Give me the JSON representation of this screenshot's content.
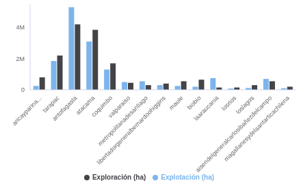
{
  "chart_data": {
    "type": "bar",
    "categories": [
      "aricayparina...",
      "tarapac",
      "antofagasta",
      "atacama",
      "coquimbo",
      "valparaiso",
      "metropolitanadesantiago",
      "libertadorgeneralbernardoohiggins",
      "maule",
      "biobio",
      "laaraucania",
      "losrios",
      "loslagos",
      "aisendelgeneralcarlosibañezdelcampo",
      "magallanesydelaantarticachilena"
    ],
    "series": [
      {
        "name": "Explotación (ha)",
        "color": "#7cb5ec",
        "values": [
          250000,
          1850000,
          5300000,
          3100000,
          1300000,
          500000,
          550000,
          300000,
          250000,
          200000,
          750000,
          80000,
          120000,
          700000,
          100000
        ]
      },
      {
        "name": "Exploración (ha)",
        "color": "#434348",
        "values": [
          800000,
          2200000,
          4200000,
          3850000,
          1700000,
          450000,
          300000,
          400000,
          550000,
          650000,
          150000,
          150000,
          300000,
          550000,
          200000
        ]
      }
    ],
    "ylim": [
      0,
      5500000
    ],
    "yticks": [
      {
        "value": 0,
        "label": "0"
      },
      {
        "value": 2000000,
        "label": "2M"
      },
      {
        "value": 4000000,
        "label": "4M"
      }
    ],
    "grid": false,
    "legend": "bottom"
  }
}
